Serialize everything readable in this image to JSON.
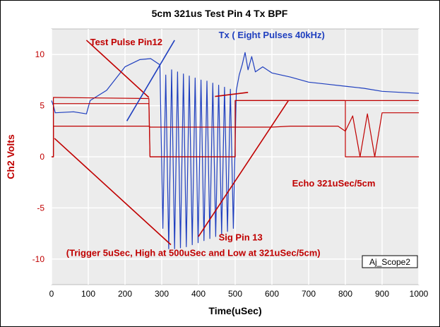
{
  "chart_data": {
    "type": "line",
    "title": "5cm 321us Test Pin 4 Tx BPF",
    "xlabel": "Time(uSec)",
    "ylabel": "Ch2 Volts",
    "xlim": [
      0,
      1000
    ],
    "ylim": [
      -12.5,
      12.5
    ],
    "x_ticks": [
      "0",
      "100",
      "200",
      "300",
      "400",
      "500",
      "600",
      "700",
      "800",
      "900",
      "1000"
    ],
    "y_ticks": [
      "10",
      "5",
      "0",
      "-5",
      "-10"
    ],
    "grid": true,
    "colors": {
      "plot_background": "#ececec",
      "plot_border": "#bdbdbd",
      "grid": "#ffffff",
      "title": "#000000",
      "xlabel": "#000000",
      "ylabel": "#c00000",
      "y_ticks": "#c00000",
      "tx_series": "#1f3fbf",
      "pulse_series": "#c00000",
      "annotation_red": "#c00000",
      "annotation_blue": "#1f3fbf"
    },
    "series": [
      {
        "color": "#1f3fbf",
        "x": [
          0,
          5,
          10,
          60,
          95,
          105,
          150,
          200,
          240,
          270,
          295,
          303,
          311,
          319,
          327,
          335,
          343,
          351,
          359,
          367,
          375,
          383,
          391,
          399,
          407,
          415,
          423,
          431,
          439,
          447,
          455,
          463,
          471,
          479,
          487,
          495,
          503,
          511,
          519,
          527,
          535,
          545,
          555,
          575,
          600,
          650,
          700,
          750,
          800,
          850,
          900,
          1000
        ],
        "y": [
          5.5,
          5.0,
          4.3,
          4.4,
          4.2,
          5.5,
          6.5,
          8.8,
          9.5,
          9.6,
          9.0,
          -7.0,
          8.0,
          -9.0,
          8.5,
          -9.0,
          8.3,
          -8.9,
          8.1,
          -8.8,
          7.9,
          -8.6,
          7.7,
          -8.4,
          7.5,
          -8.2,
          7.4,
          -8.0,
          7.2,
          -7.8,
          7.0,
          -7.6,
          6.8,
          -7.3,
          6.6,
          -7.0,
          6.5,
          8.0,
          9.0,
          10.2,
          8.5,
          9.8,
          8.3,
          8.8,
          8.2,
          7.8,
          7.3,
          7.1,
          6.9,
          6.7,
          6.4,
          6.2
        ],
        "oscillation": "decaying ripple at about 40kHz after 500uSec"
      },
      {
        "color": "#c00000",
        "x": [
          0,
          5,
          5,
          10,
          265,
          268,
          270,
          500,
          500,
          800,
          800,
          1000
        ],
        "y": [
          0,
          0,
          5.8,
          5.8,
          5.7,
          0,
          0,
          0,
          5.5,
          5.5,
          0,
          0
        ]
      },
      {
        "color": "#c00000",
        "x": [
          0,
          5,
          5,
          265,
          268,
          270,
          500,
          500,
          800,
          1000
        ],
        "y": [
          0,
          0,
          5.2,
          5.2,
          0,
          0,
          0,
          5.5,
          5.5,
          5.5
        ]
      },
      {
        "color": "#c00000",
        "x": [
          0,
          5,
          5,
          265,
          268,
          500,
          550,
          600,
          650,
          700,
          750,
          780,
          800,
          820,
          840,
          860,
          880,
          900,
          1000
        ],
        "y": [
          0,
          0,
          3.0,
          3.0,
          2.9,
          2.9,
          2.9,
          2.9,
          3.0,
          3.0,
          3.0,
          3.0,
          2.5,
          4.0,
          0.0,
          4.2,
          0.0,
          4.3,
          4.3
        ],
        "oscillation": "echo ringing near 40kHz after 800uSec"
      }
    ],
    "annotations": [
      {
        "text": "Test Pulse Pin12",
        "x": 105,
        "y": 10.9,
        "color": "#c00000"
      },
      {
        "text": "Tx ( Eight Pulses 40kHz)",
        "x": 455,
        "y": 11.6,
        "color": "#1f3fbf"
      },
      {
        "text": "Echo 321uSec/5cm",
        "x": 655,
        "y": -2.9,
        "color": "#c00000"
      },
      {
        "text": "Sig Pin 13",
        "x": 455,
        "y": -8.2,
        "color": "#c00000"
      },
      {
        "text": "(Trigger 5uSec, High at 500uSec and Low at 321uSec/5cm)",
        "x": 40,
        "y": -9.7,
        "color": "#c00000"
      }
    ],
    "watermark_label": "Aj_Scope2"
  }
}
